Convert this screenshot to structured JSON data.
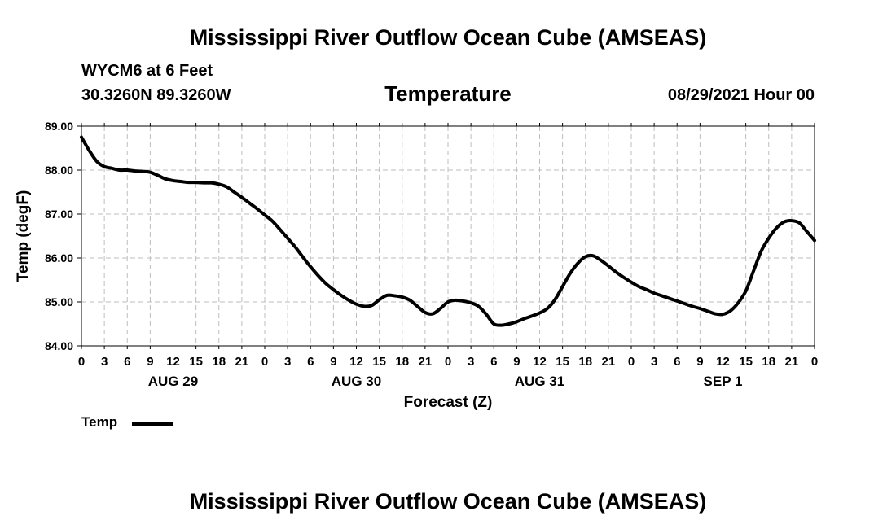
{
  "header": {
    "main_title": "Mississippi River Outflow Ocean Cube (AMSEAS)",
    "station": "WYCM6 at 6 Feet",
    "coordinates": "30.3260N  89.3260W",
    "date": "08/29/2021 Hour 00"
  },
  "footer": {
    "main_title": "Mississippi River Outflow Ocean Cube (AMSEAS)"
  },
  "legend": {
    "label": "Temp"
  },
  "colors": {
    "line": "#000000",
    "grid": "#bdbdbd",
    "background": "#ffffff"
  },
  "chart_data": {
    "type": "line",
    "title": "Temperature",
    "xlabel": "Forecast (Z)",
    "ylabel": "Temp (degF)",
    "xlim": [
      0,
      96
    ],
    "ylim": [
      84.0,
      89.0
    ],
    "grid": true,
    "legend_position": "bottom-left",
    "y_ticks": [
      "84.00",
      "85.00",
      "86.00",
      "87.00",
      "88.00",
      "89.00"
    ],
    "y_tick_values": [
      84,
      85,
      86,
      87,
      88,
      89
    ],
    "x_tick_labels": [
      "0",
      "3",
      "6",
      "9",
      "12",
      "15",
      "18",
      "21",
      "0",
      "3",
      "6",
      "9",
      "12",
      "15",
      "18",
      "21",
      "0",
      "3",
      "6",
      "9",
      "12",
      "15",
      "18",
      "21",
      "0",
      "3",
      "6",
      "9",
      "12",
      "15",
      "18",
      "21",
      "0"
    ],
    "day_labels": [
      {
        "label": "AUG 29",
        "hour": 12
      },
      {
        "label": "AUG 30",
        "hour": 36
      },
      {
        "label": "AUG 31",
        "hour": 60
      },
      {
        "label": "SEP 1",
        "hour": 84
      }
    ],
    "series": [
      {
        "name": "Temp",
        "x": [
          0,
          1,
          2,
          3,
          4,
          5,
          6,
          7,
          8,
          9,
          10,
          11,
          12,
          13,
          14,
          15,
          16,
          17,
          18,
          19,
          20,
          21,
          22,
          23,
          24,
          25,
          26,
          27,
          28,
          29,
          30,
          31,
          32,
          33,
          34,
          35,
          36,
          37,
          38,
          39,
          40,
          41,
          42,
          43,
          44,
          45,
          46,
          47,
          48,
          49,
          50,
          51,
          52,
          53,
          54,
          55,
          56,
          57,
          58,
          59,
          60,
          61,
          62,
          63,
          64,
          65,
          66,
          67,
          68,
          69,
          70,
          71,
          72,
          73,
          74,
          75,
          76,
          77,
          78,
          79,
          80,
          81,
          82,
          83,
          84,
          85,
          86,
          87,
          88,
          89,
          90,
          91,
          92,
          93,
          94,
          95,
          96
        ],
        "values": [
          88.75,
          88.45,
          88.2,
          88.08,
          88.04,
          88.0,
          88.0,
          87.98,
          87.97,
          87.95,
          87.88,
          87.8,
          87.76,
          87.74,
          87.72,
          87.72,
          87.71,
          87.71,
          87.68,
          87.62,
          87.5,
          87.38,
          87.25,
          87.12,
          86.98,
          86.84,
          86.65,
          86.45,
          86.25,
          86.02,
          85.8,
          85.6,
          85.42,
          85.28,
          85.15,
          85.04,
          84.95,
          84.9,
          84.92,
          85.05,
          85.15,
          85.14,
          85.11,
          85.04,
          84.9,
          84.76,
          84.73,
          84.85,
          85.0,
          85.04,
          85.02,
          84.98,
          84.9,
          84.72,
          84.5,
          84.47,
          84.5,
          84.55,
          84.62,
          84.68,
          84.75,
          84.85,
          85.05,
          85.35,
          85.65,
          85.88,
          86.03,
          86.05,
          85.95,
          85.82,
          85.68,
          85.56,
          85.45,
          85.35,
          85.28,
          85.2,
          85.14,
          85.08,
          85.02,
          84.96,
          84.9,
          84.85,
          84.79,
          84.73,
          84.72,
          84.8,
          84.98,
          85.25,
          85.7,
          86.15,
          86.45,
          86.68,
          86.82,
          86.85,
          86.8,
          86.6,
          86.4
        ]
      }
    ]
  }
}
